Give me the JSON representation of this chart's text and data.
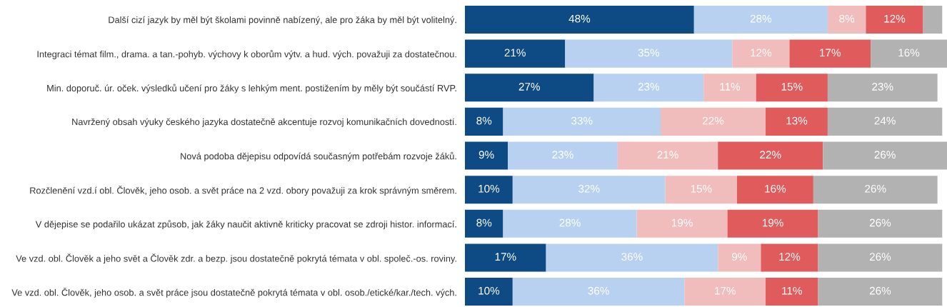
{
  "chart_data": {
    "type": "bar",
    "orientation": "horizontal",
    "stacked": true,
    "legend": false,
    "grid": false,
    "tick_labels": "y",
    "categories": [
      "Další cizí jazyk by měl být školami povinně nabízený, ale pro žáka by měl být volitelný.",
      "Integraci témat film., drama. a tan.-pohyb. výchovy k oborům výtv. a hud. vých. považuji za dostatečnou.",
      "Min. doporuč. úr. oček. výsledků učení pro žáky s lehkým ment. postižením by měly být součástí RVP.",
      "Navržený obsah výuky českého jazyka dostatečně akcentuje rozvoj komunikačních dovedností.",
      "Nová podoba dějepisu odpovídá současným potřebám rozvoje žáků.",
      "Rozčlenění vzd.í obl. Člověk, jeho osob. a svět práce na 2 vzd. obory považuji za krok správným směrem.",
      "V dějepise se podařilo ukázat způsob, jak žáky naučit aktivně kriticky pracovat se zdroji histor. informací.",
      "Ve vzd. obl. Člověk a jeho svět a Člověk zdr. a bezp. jsou dostatečně pokrytá témata v obl. společ.-os. roviny.",
      "Ve vzd. obl. Člověk, jeho osob. a svět práce jsou dostatečně pokrytá témata v obl. osob./etické/kar./tech. vých."
    ],
    "series": [
      {
        "color": "#0e4a84",
        "values": [
          48,
          21,
          27,
          8,
          9,
          10,
          8,
          17,
          10
        ],
        "value_labels": [
          "48%",
          "21%",
          "27%",
          "8%",
          "9%",
          "10%",
          "8%",
          "17%",
          "10%"
        ]
      },
      {
        "color": "#b8d1f0",
        "values": [
          28,
          35,
          23,
          33,
          23,
          32,
          28,
          36,
          36
        ],
        "value_labels": [
          "28%",
          "35%",
          "23%",
          "33%",
          "23%",
          "32%",
          "28%",
          "36%",
          "36%"
        ]
      },
      {
        "color": "#f0bcbc",
        "values": [
          8,
          12,
          11,
          22,
          21,
          15,
          19,
          9,
          17
        ],
        "value_labels": [
          "8%",
          "12%",
          "11%",
          "22%",
          "21%",
          "15%",
          "19%",
          "9%",
          "17%"
        ]
      },
      {
        "color": "#e05b5b",
        "values": [
          12,
          17,
          15,
          13,
          22,
          16,
          19,
          12,
          11
        ],
        "value_labels": [
          "12%",
          "17%",
          "15%",
          "13%",
          "22%",
          "16%",
          "19%",
          "12%",
          "11%"
        ]
      },
      {
        "color": "#b2b2b2",
        "values": [
          4,
          16,
          23,
          24,
          26,
          26,
          26,
          26,
          26
        ],
        "value_labels": [
          null,
          "16%",
          "23%",
          "24%",
          "26%",
          "26%",
          "26%",
          "26%",
          "26%"
        ]
      }
    ]
  }
}
